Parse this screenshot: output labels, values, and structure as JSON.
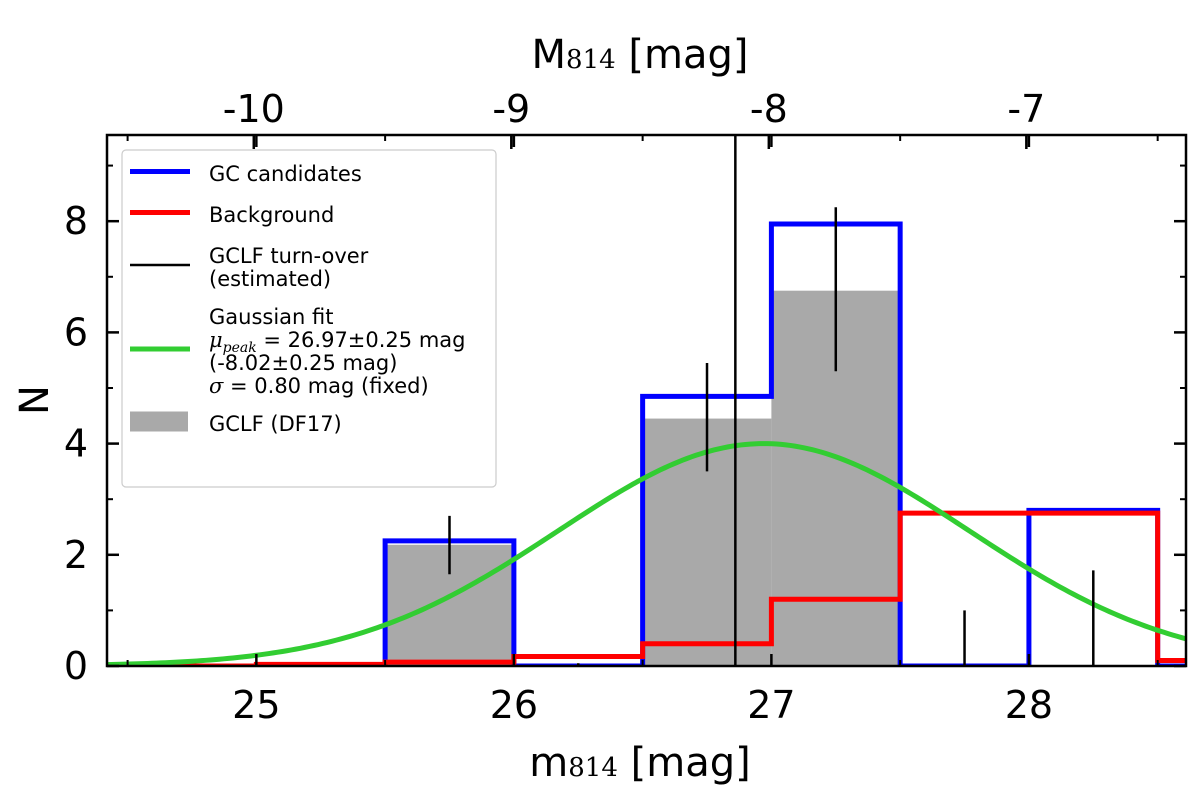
{
  "chart_data": {
    "type": "bar",
    "xlabel": "m814 [mag]",
    "x2label": "M814 [mag]",
    "ylabel": "N",
    "xlim": [
      24.42,
      28.61
    ],
    "ylim": [
      0,
      9.55
    ],
    "x_ticks": [
      "25",
      "26",
      "27",
      "28"
    ],
    "x_tick_values": [
      25,
      26,
      27,
      28
    ],
    "x2_ticks": [
      "-10",
      "-9",
      "-8",
      "-7"
    ],
    "x2_tick_values": [
      -10,
      -9,
      -8,
      -7
    ],
    "x2_offset": 34.99,
    "y_ticks": [
      "0",
      "2",
      "4",
      "6",
      "8"
    ],
    "y_tick_values": [
      0,
      2,
      4,
      6,
      8
    ],
    "bin_edges": [
      24.5,
      25,
      25.5,
      26,
      26.5,
      27,
      27.5,
      28,
      28.5,
      29
    ],
    "series": [
      {
        "name": "GC candidates",
        "type": "step",
        "color": "#0000ff",
        "values": [
          0,
          0,
          2.25,
          0,
          4.85,
          7.95,
          0,
          2.8,
          0
        ]
      },
      {
        "name": "Background",
        "type": "step",
        "color": "#ff0000",
        "values": [
          0,
          0.03,
          0.07,
          0.17,
          0.4,
          1.2,
          2.75,
          2.75,
          0.1
        ]
      },
      {
        "name": "GCLF (DF17)",
        "type": "bar",
        "color": "#a9a9a9",
        "values": [
          0,
          0,
          2.18,
          0,
          4.45,
          6.75,
          0,
          0,
          0
        ]
      }
    ],
    "error_bars": [
      {
        "x": 25.75,
        "low": 1.65,
        "high": 2.7
      },
      {
        "x": 26.25,
        "low": 0.0,
        "high": 0.05
      },
      {
        "x": 26.75,
        "low": 3.5,
        "high": 5.45
      },
      {
        "x": 27.25,
        "low": 5.3,
        "high": 8.25
      },
      {
        "x": 27.75,
        "low": 0.0,
        "high": 1.0
      },
      {
        "x": 28.25,
        "low": 0.0,
        "high": 1.72
      }
    ],
    "gaussian": {
      "name": "Gaussian fit",
      "color": "#32cd32",
      "mu": 26.97,
      "sigma": 0.8,
      "amplitude": 4.0
    },
    "turnover": {
      "name": "GCLF turn-over (estimated)",
      "x": 26.86,
      "color": "#000000"
    },
    "legend": {
      "position": "top-left",
      "entries": [
        {
          "kind": "line",
          "color": "#0000ff",
          "lines": [
            "GC candidates"
          ]
        },
        {
          "kind": "line",
          "color": "#ff0000",
          "lines": [
            "Background"
          ]
        },
        {
          "kind": "line-thin",
          "color": "#000000",
          "lines": [
            "GCLF turn-over",
            "(estimated)"
          ]
        },
        {
          "kind": "line",
          "color": "#32cd32",
          "lines": [
            "Gaussian fit",
            "μpeak = 26.97±0.25 mag",
            "(-8.02±0.25 mag)",
            "σ = 0.80 mag (fixed)"
          ]
        },
        {
          "kind": "patch",
          "color": "#a9a9a9",
          "lines": [
            "GCLF (DF17)"
          ]
        }
      ]
    },
    "grid": false
  }
}
